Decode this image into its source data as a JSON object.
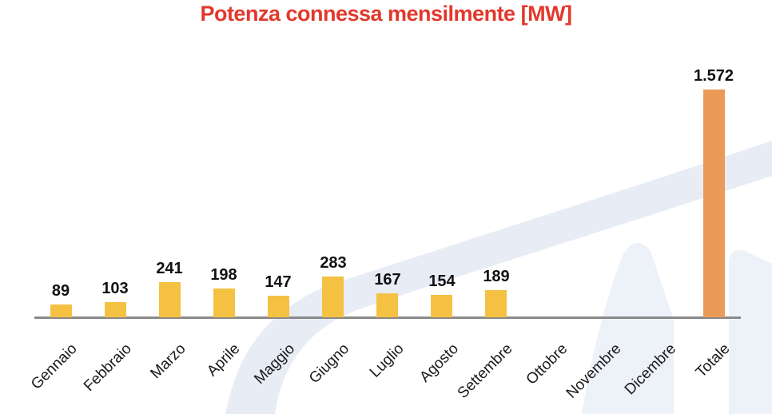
{
  "title": {
    "text": "Potenza connessa mensilmente [MW]",
    "color": "#E2382C"
  },
  "chart_data": {
    "type": "bar",
    "title": "Potenza connessa mensilmente [MW]",
    "xlabel": "",
    "ylabel": "",
    "categories": [
      "Gennaio",
      "Febbraio",
      "Marzo",
      "Aprile",
      "Maggio",
      "Giugno",
      "Luglio",
      "Agosto",
      "Settembre",
      "Ottobre",
      "Novembre",
      "Dicembre",
      "Totale"
    ],
    "values": [
      89,
      103,
      241,
      198,
      147,
      283,
      167,
      154,
      189,
      0,
      0,
      0,
      1572
    ],
    "value_labels": [
      "89",
      "103",
      "241",
      "198",
      "147",
      "283",
      "167",
      "154",
      "189",
      "",
      "",
      "",
      "1.572"
    ],
    "total_category": "Totale",
    "bar_color_monthly": "#F5C142",
    "bar_color_total": "#EB9A57",
    "axis_line_color": "#898989",
    "ylim": [
      0,
      1650
    ],
    "grid": false,
    "legend": false,
    "y_axis_visible": false,
    "x_label_rotation_deg": 45
  },
  "watermark": {
    "name": "background-logo-swoosh",
    "band_color": "#E7ECF5",
    "letter_color": "#EDF1F8"
  }
}
